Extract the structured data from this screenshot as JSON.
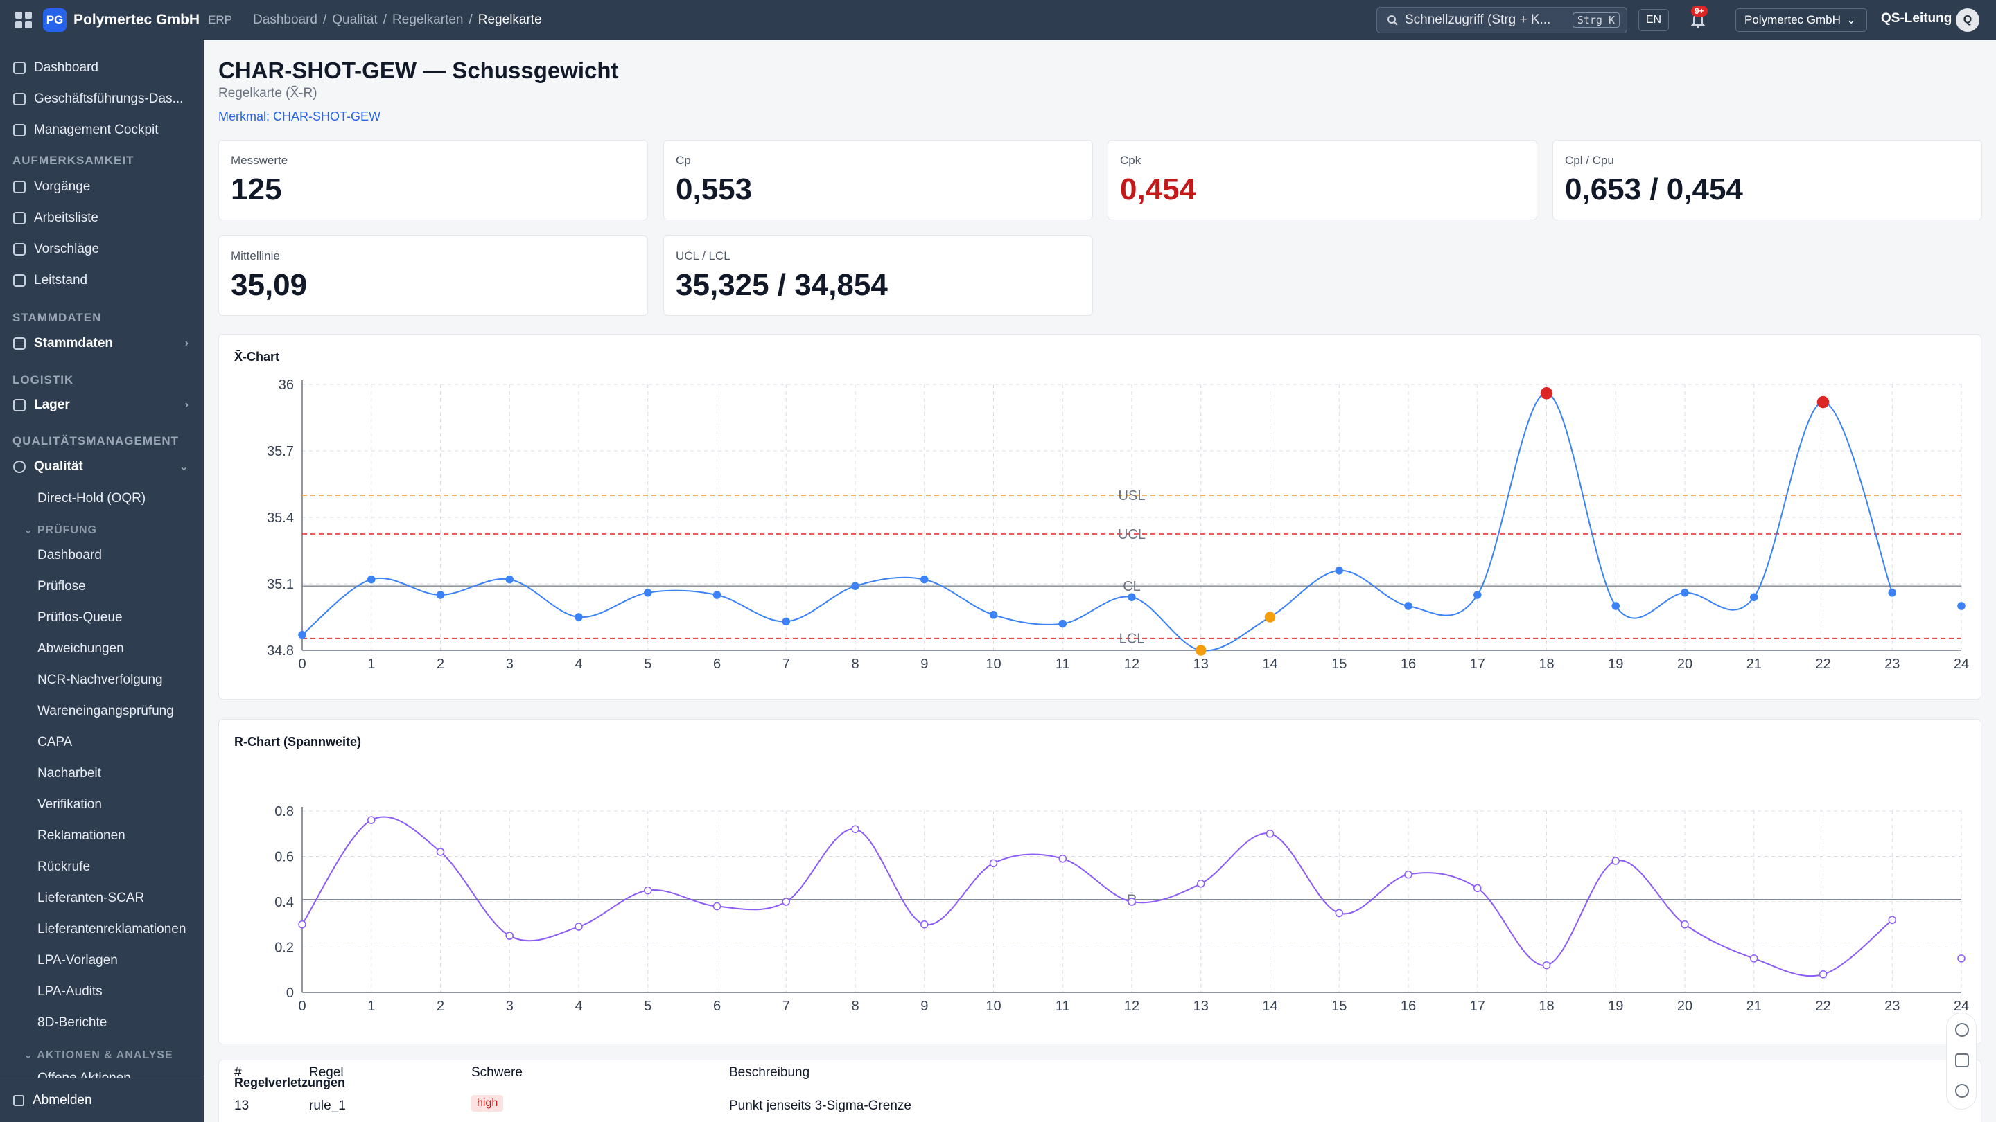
{
  "app": {
    "logo": "PG",
    "company": "Polymertec GmbH",
    "module": "ERP",
    "breadcrumb": [
      "Dashboard",
      "Qualität",
      "Regelkarten",
      "Regelkarte"
    ],
    "search_placeholder": "Schnellzugriff (Strg + K...",
    "search_shortcut": "Strg K",
    "language": "EN",
    "notifications": "9+",
    "tenant": "Polymertec GmbH",
    "user_role": "QS-Leitung",
    "avatar": "Q"
  },
  "sidebar": {
    "top_items": [
      "Dashboard",
      "Geschäftsführungs-Das...",
      "Management Cockpit"
    ],
    "sections": {
      "aufmerksamkeit": "AUFMERKSAMKEIT",
      "stammdaten": "STAMMDATEN",
      "logistik": "LOGISTIK",
      "qm": "QUALITÄTSMANAGEMENT",
      "pruefung": "PRÜFUNG",
      "aktionen": "AKTIONEN & ANALYSE"
    },
    "attention_items": [
      "Vorgänge",
      "Arbeitsliste",
      "Vorschläge",
      "Leitstand"
    ],
    "stammdaten_item": "Stammdaten",
    "lager_item": "Lager",
    "qualitaet_item": "Qualität",
    "direct_hold": "Direct-Hold (OQR)",
    "pruefung_items": [
      "Dashboard",
      "Prüflose",
      "Prüflos-Queue",
      "Abweichungen",
      "NCR-Nachverfolgung",
      "Wareneingangsprüfung",
      "CAPA",
      "Nacharbeit",
      "Verifikation",
      "Reklamationen",
      "Rückrufe",
      "Lieferanten-SCAR",
      "Lieferantenreklamationen",
      "LPA-Vorlagen",
      "LPA-Audits",
      "8D-Berichte"
    ],
    "cut_item": "Offene Aktionen",
    "logout": "Abmelden"
  },
  "page": {
    "title": "CHAR-SHOT-GEW — Schussgewicht",
    "subtitle": "Regelkarte (X̄-R)",
    "link": "Merkmal: CHAR-SHOT-GEW"
  },
  "kpis": [
    {
      "label": "Messwerte",
      "value": "125"
    },
    {
      "label": "Cp",
      "value": "0,553"
    },
    {
      "label": "Cpk",
      "value": "0,454"
    },
    {
      "label": "Cpl / Cpu",
      "value": "0,653 / 0,454"
    },
    {
      "label": "Mittellinie",
      "value": "35,09"
    },
    {
      "label": "UCL / LCL",
      "value": "35,325 / 34,854"
    }
  ],
  "chart_data": [
    {
      "type": "line",
      "title": "X̄-Chart",
      "x": [
        0,
        1,
        2,
        3,
        4,
        5,
        6,
        7,
        8,
        9,
        10,
        11,
        12,
        13,
        14,
        15,
        16,
        17,
        18,
        19,
        20,
        21,
        22,
        23,
        24
      ],
      "series": [
        {
          "values": [
            34.87,
            35.12,
            35.05,
            35.12,
            34.95,
            35.06,
            35.05,
            34.93,
            35.09,
            35.12,
            34.96,
            34.92,
            35.04,
            34.8,
            34.95,
            35.16,
            35.0,
            35.05,
            35.96,
            35.0,
            35.06,
            35.04,
            35.92,
            35.06,
            35.0
          ]
        }
      ],
      "highlight_points": [
        {
          "x": 13,
          "status": "warning"
        },
        {
          "x": 14,
          "status": "warning"
        },
        {
          "x": 18,
          "status": "violation"
        },
        {
          "x": 22,
          "status": "violation"
        }
      ],
      "reference_lines": [
        {
          "label": "USL",
          "value": 35.5,
          "color": "#f0a24a"
        },
        {
          "label": "UCL",
          "value": 35.325,
          "color": "#e04848"
        },
        {
          "label": "CL",
          "value": 35.09,
          "color": "#7c8796"
        },
        {
          "label": "LCL",
          "value": 34.854,
          "color": "#e04848"
        }
      ],
      "ylim": [
        34.8,
        36
      ],
      "yticks": [
        "34.8",
        "35.1",
        "35.4",
        "35.7",
        "36"
      ],
      "grid": true,
      "color": "#3b82f6"
    },
    {
      "type": "line",
      "title": "R-Chart (Spannweite)",
      "x": [
        0,
        1,
        2,
        3,
        4,
        5,
        6,
        7,
        8,
        9,
        10,
        11,
        12,
        13,
        14,
        15,
        16,
        17,
        18,
        19,
        20,
        21,
        22,
        23,
        24
      ],
      "series": [
        {
          "values": [
            0.3,
            0.76,
            0.62,
            0.25,
            0.29,
            0.45,
            0.38,
            0.4,
            0.72,
            0.3,
            0.57,
            0.59,
            0.4,
            0.48,
            0.7,
            0.35,
            0.52,
            0.46,
            0.12,
            0.58,
            0.3,
            0.15,
            0.08,
            0.32,
            0.15
          ]
        }
      ],
      "reference_lines": [
        {
          "label": "R̄",
          "value": 0.41,
          "color": "#7c8796"
        }
      ],
      "ylim": [
        0,
        0.8
      ],
      "yticks": [
        "0",
        "0.2",
        "0.4",
        "0.6",
        "0.8"
      ],
      "grid": true,
      "color": "#8b5cf6"
    }
  ],
  "violations": {
    "title": "Regelverletzungen",
    "columns": [
      "#",
      "Regel",
      "Schwere",
      "Beschreibung"
    ],
    "rows": [
      {
        "num": "13",
        "rule": "rule_1",
        "severity": "high",
        "description": "Punkt jenseits 3-Sigma-Grenze"
      }
    ]
  }
}
